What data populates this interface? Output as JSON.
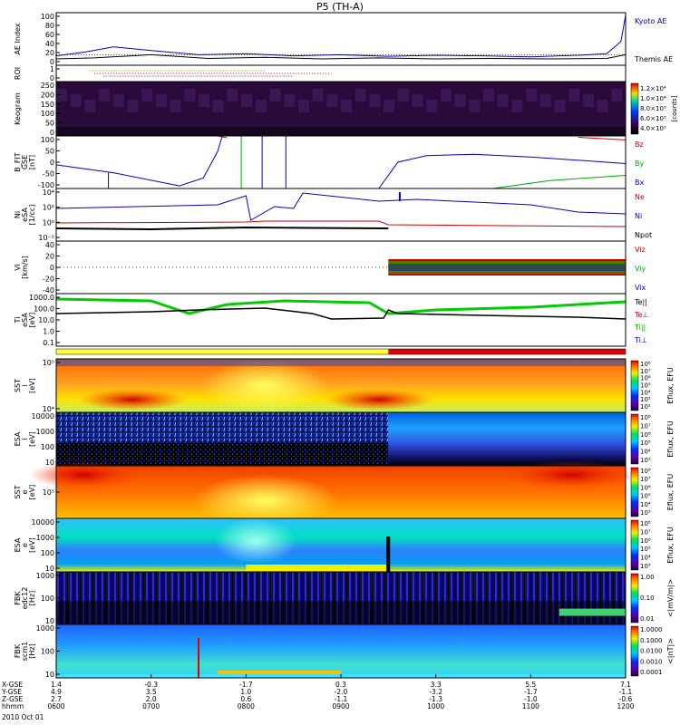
{
  "chart_data": {
    "type": "multi-panel-timeseries",
    "title": "P5 (TH-A)",
    "time_range": [
      "0600",
      "1200"
    ],
    "time_ticks": [
      "0600",
      "0700",
      "0800",
      "0900",
      "1000",
      "1100",
      "1200"
    ],
    "footer": {
      "rows": [
        {
          "label": "X-GSE",
          "values": [
            "1.4",
            "-0.3",
            "-1.7",
            "0.3",
            "3.3",
            "5.5",
            "7.1"
          ]
        },
        {
          "label": "Y-GSE",
          "values": [
            "4.9",
            "3.5",
            "1.0",
            "-2.0",
            "-3.2",
            "-1.7",
            "-1.1"
          ]
        },
        {
          "label": "Z-GSE",
          "values": [
            "2.7",
            "2.0",
            "0.6",
            "-1.1",
            "-1.3",
            "-1.0",
            "-0.6"
          ]
        },
        {
          "label": "hhmm",
          "values": [
            "0600",
            "0700",
            "0800",
            "0900",
            "1000",
            "1100",
            "1200"
          ]
        }
      ],
      "date": "2010 Oct 01"
    },
    "panels": [
      {
        "id": "ae",
        "ylabel": [
          "AE Index"
        ],
        "yticks": [
          "100",
          "80",
          "60",
          "40",
          "20",
          "0"
        ],
        "legend": [
          {
            "name": "Kyoto AE",
            "color": "#0000cc"
          },
          {
            "name": "Themis AE",
            "color": "#000000"
          }
        ],
        "series": {
          "kyoto": [
            [
              0,
              18
            ],
            [
              0.3,
              25
            ],
            [
              0.6,
              35
            ],
            [
              1.0,
              28
            ],
            [
              1.5,
              20
            ],
            [
              2.0,
              22
            ],
            [
              2.5,
              18
            ],
            [
              3.0,
              20
            ],
            [
              3.5,
              17
            ],
            [
              4.0,
              19
            ],
            [
              4.5,
              18
            ],
            [
              5.0,
              16
            ],
            [
              5.5,
              19
            ],
            [
              5.8,
              22
            ],
            [
              5.95,
              45
            ],
            [
              6.0,
              95
            ]
          ],
          "themis": [
            [
              0,
              12
            ],
            [
              0.4,
              14
            ],
            [
              1.0,
              20
            ],
            [
              1.6,
              13
            ],
            [
              2.2,
              15
            ],
            [
              2.8,
              12
            ],
            [
              3.4,
              14
            ],
            [
              4.0,
              12
            ],
            [
              4.6,
              13
            ],
            [
              5.2,
              12
            ],
            [
              5.8,
              13
            ],
            [
              6.0,
              20
            ]
          ]
        }
      },
      {
        "id": "roi",
        "ylabel": [
          "ROI"
        ],
        "yticks": [
          "1",
          "0"
        ]
      },
      {
        "id": "keogram",
        "ylabel": [
          "Keogram"
        ],
        "yticks": [
          "250",
          "200",
          "150",
          "100",
          "50",
          "0"
        ],
        "colorbar": {
          "ticks": [
            "1.2×10⁴",
            "1.0×10⁴",
            "8.0×10³",
            "6.0×10³",
            "4.0×10³"
          ],
          "label": "[counts]"
        }
      },
      {
        "id": "bfit",
        "ylabel": [
          "B_FIT",
          "GSE",
          "[nT]"
        ],
        "yticks": [
          "100",
          "50",
          "0",
          "-50",
          "-100"
        ],
        "legend": [
          {
            "name": "Bz",
            "color": "#cc0000"
          },
          {
            "name": "By",
            "color": "#00aa00"
          },
          {
            "name": "Bx",
            "color": "#0000cc"
          }
        ]
      },
      {
        "id": "ni",
        "ylabel": [
          "Ni",
          "eSA",
          "[1/cc]"
        ],
        "yticks": [
          "10⁴",
          "10²",
          "10⁰",
          "10⁻²"
        ],
        "legend": [
          {
            "name": "Ne",
            "color": "#cc0000"
          },
          {
            "name": "Ni",
            "color": "#0000cc"
          },
          {
            "name": "Npot",
            "color": "#000000"
          }
        ]
      },
      {
        "id": "vi",
        "ylabel": [
          "Vi",
          "[km/s]"
        ],
        "yticks": [
          "40",
          "20",
          "0",
          "-20",
          "-40"
        ],
        "legend": [
          {
            "name": "Viz",
            "color": "#cc0000"
          },
          {
            "name": "Viy",
            "color": "#00aa00"
          },
          {
            "name": "Vix",
            "color": "#0000cc"
          }
        ]
      },
      {
        "id": "temp",
        "ylabel": [
          "Ti",
          "eSA",
          "[eV]"
        ],
        "yticks": [
          "1000.0",
          "100.0",
          "10.0",
          "1.0",
          "0.1"
        ],
        "legend": [
          {
            "name": "Te||",
            "color": "#000000"
          },
          {
            "name": "Te⊥",
            "color": "#cc0000"
          },
          {
            "name": "Ti||",
            "color": "#00aa00"
          },
          {
            "name": "Ti⊥",
            "color": "#0000cc"
          }
        ]
      },
      {
        "id": "sst_i",
        "ylabel": [
          "SST",
          "i",
          "[eV]"
        ],
        "yticks": [
          "10⁵",
          "10⁴"
        ],
        "cbar_label": "Eflux, EFU",
        "cticks": [
          "10⁸",
          "10⁷",
          "10⁶",
          "10⁵",
          "10⁴",
          "10³",
          "10²"
        ]
      },
      {
        "id": "esa_i",
        "ylabel": [
          "ESA",
          "i",
          "[eV]"
        ],
        "yticks": [
          "10000",
          "1000",
          "100",
          "10"
        ],
        "cbar_label": "Eflux, EFU",
        "cticks": [
          "10⁸",
          "10⁷",
          "10⁶",
          "10⁵",
          "10⁴",
          "10³"
        ]
      },
      {
        "id": "sst_e",
        "ylabel": [
          "SST",
          "e",
          "[eV]"
        ],
        "yticks": [
          "10⁵"
        ],
        "cbar_label": "Eflux, EFU",
        "cticks": [
          "10⁸",
          "10⁷",
          "10⁶",
          "10⁵",
          "10⁴",
          "10³"
        ]
      },
      {
        "id": "esa_e",
        "ylabel": [
          "ESA",
          "e",
          "[eV]"
        ],
        "yticks": [
          "10000",
          "1000",
          "100",
          "10"
        ],
        "cbar_label": "Eflux, EFU",
        "cticks": [
          "10⁸",
          "10⁷",
          "10⁶",
          "10⁵",
          "10⁴",
          "10³"
        ]
      },
      {
        "id": "fbk_e12",
        "ylabel": [
          "FBK",
          "edc12",
          "[Hz]"
        ],
        "yticks": [
          "1000",
          "100",
          "10"
        ],
        "cbar_label": "<|mV/m|>",
        "cticks": [
          "1.00",
          "0.10",
          "0.01"
        ]
      },
      {
        "id": "fbk_scm1",
        "ylabel": [
          "FBK",
          "scm1",
          "[Hz]"
        ],
        "yticks": [
          "1000",
          "100",
          "10"
        ],
        "cbar_label": "<|nT|>",
        "cticks": [
          "1.0000",
          "0.1000",
          "0.0100",
          "0.0010",
          "0.0001"
        ]
      }
    ]
  }
}
